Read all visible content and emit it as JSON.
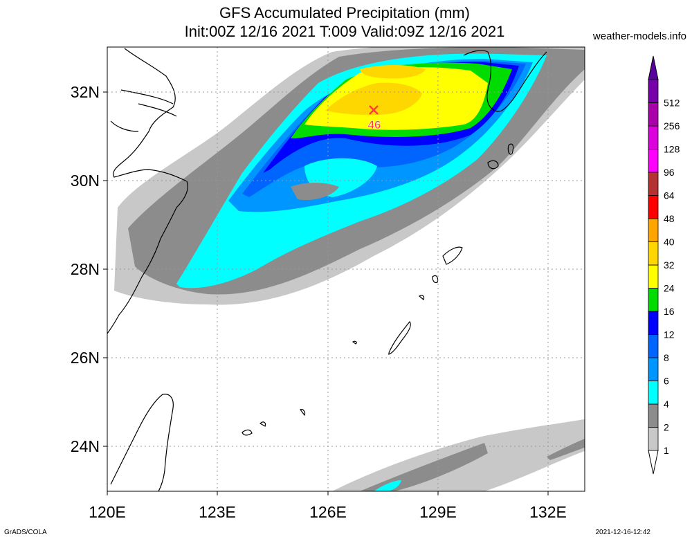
{
  "title": "GFS Accumulated Precipitation (mm)",
  "subtitle": "Init:00Z 12/16 2021 T:009 Valid:09Z 12/16 2021",
  "site": "weather-models.info",
  "footer_left": "GrADS/COLA",
  "footer_right": "2021-12-16-12:42",
  "map": {
    "lon_range": [
      120,
      133
    ],
    "lat_range": [
      23,
      33
    ],
    "lon_ticks": [
      "120E",
      "123E",
      "126E",
      "129E",
      "132E"
    ],
    "lat_ticks": [
      "24N",
      "26N",
      "28N",
      "30N",
      "32N"
    ]
  },
  "max_marker": {
    "label": "46",
    "lon": 127.3,
    "lat": 31.6
  },
  "legend": {
    "levels": [
      "1",
      "2",
      "4",
      "6",
      "8",
      "12",
      "16",
      "24",
      "32",
      "40",
      "48",
      "64",
      "96",
      "128",
      "256",
      "512"
    ],
    "colors": [
      "#c8c8c8",
      "#8c8c8c",
      "#00ffff",
      "#0096ff",
      "#0064ff",
      "#0000ff",
      "#00dc00",
      "#ffff00",
      "#ffd700",
      "#ffa500",
      "#ff0000",
      "#b43232",
      "#ff00ff",
      "#dc00dc",
      "#aa00aa",
      "#7800aa"
    ],
    "top_arrow_color": "#5a00a0"
  }
}
